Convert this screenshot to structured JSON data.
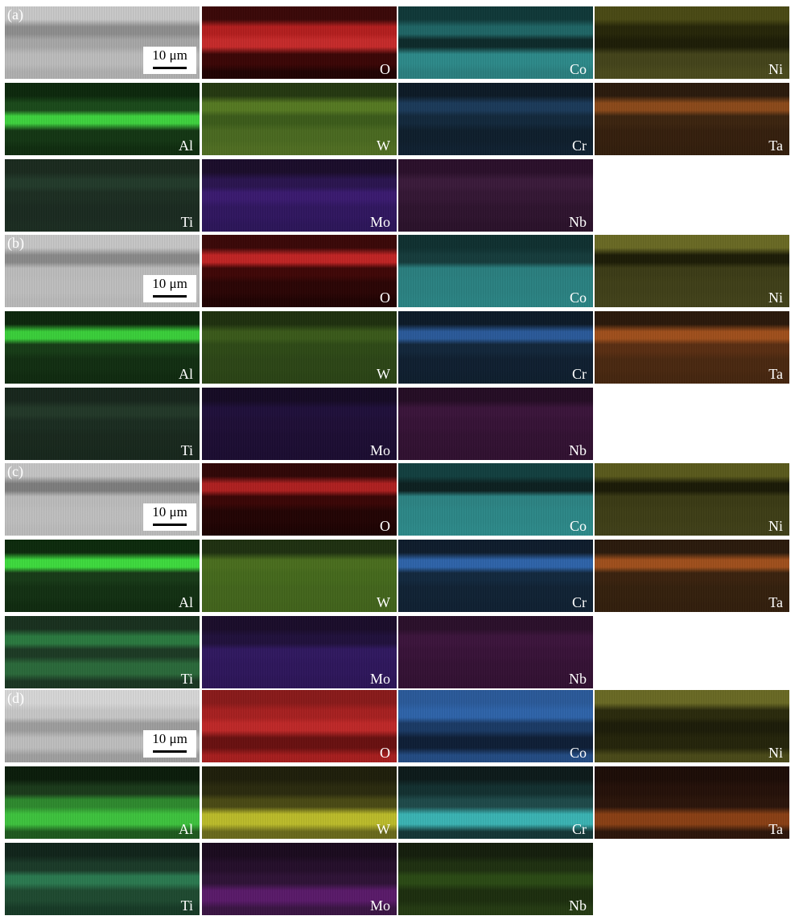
{
  "scale_bar": "10 μm",
  "panels": [
    {
      "label": "(a)",
      "tiles": [
        {
          "name": "sem",
          "label": "",
          "colors": [
            "#c9c9c9",
            "#8e8e8e",
            "#a8a8a8",
            "#bdbdbd",
            "#b0b0b0"
          ]
        },
        {
          "name": "O",
          "label": "O",
          "colors": [
            "#3a0707",
            "#b51e1e",
            "#c72a2a",
            "#3b0505",
            "#200202"
          ]
        },
        {
          "name": "Co",
          "label": "Co",
          "colors": [
            "#0f3838",
            "#1f6666",
            "#0d2a2a",
            "#2d8a8a",
            "#2a8080"
          ]
        },
        {
          "name": "Ni",
          "label": "Ni",
          "colors": [
            "#4a4a14",
            "#262608",
            "#1d1d06",
            "#44441a",
            "#4a4a1c"
          ]
        },
        {
          "name": "Al",
          "label": "Al",
          "colors": [
            "#0c280c",
            "#1a4a1a",
            "#3ed43e",
            "#133613",
            "#0f2d0f"
          ]
        },
        {
          "name": "W",
          "label": "W",
          "colors": [
            "#243810",
            "#567a22",
            "#3c5c1a",
            "#4a6a20",
            "#506e22"
          ]
        },
        {
          "name": "Cr",
          "label": "Cr",
          "colors": [
            "#0c1a26",
            "#1b3a5a",
            "#12283c",
            "#0e1e2c",
            "#0f2030"
          ]
        },
        {
          "name": "Ta",
          "label": "Ta",
          "colors": [
            "#2a1a0c",
            "#8c4a1a",
            "#3c240f",
            "#351f0d",
            "#331e0c"
          ]
        },
        {
          "name": "Ti",
          "label": "Ti",
          "colors": [
            "#1a2a1e",
            "#223a2a",
            "#1c2e22",
            "#1a2a20",
            "#1b2c21"
          ]
        },
        {
          "name": "Mo",
          "label": "Mo",
          "colors": [
            "#1a0c2a",
            "#2a1450",
            "#3a1a70",
            "#301660",
            "#2c155a"
          ]
        },
        {
          "name": "Nb",
          "label": "Nb",
          "colors": [
            "#2a0f2a",
            "#3a1a3a",
            "#341634",
            "#2e132e",
            "#2a112a"
          ]
        }
      ]
    },
    {
      "label": "(b)",
      "tiles": [
        {
          "name": "sem",
          "label": "",
          "colors": [
            "#c7c7c7",
            "#8a8a8a",
            "#bdbdbd",
            "#bfbfbf",
            "#bababa"
          ]
        },
        {
          "name": "O",
          "label": "O",
          "colors": [
            "#3a0707",
            "#c22424",
            "#400606",
            "#2a0404",
            "#200202"
          ]
        },
        {
          "name": "Co",
          "label": "Co",
          "colors": [
            "#0f3030",
            "#153c3c",
            "#2a8080",
            "#2a8282",
            "#2b8484"
          ]
        },
        {
          "name": "Ni",
          "label": "Ni",
          "colors": [
            "#6a6a24",
            "#1c1c06",
            "#3c3c16",
            "#404018",
            "#42421a"
          ]
        },
        {
          "name": "Al",
          "label": "Al",
          "colors": [
            "#0c260c",
            "#3ad03a",
            "#163c16",
            "#112e11",
            "#0f2a0f"
          ]
        },
        {
          "name": "W",
          "label": "W",
          "colors": [
            "#1e300e",
            "#3a5a1a",
            "#2e4a16",
            "#2c4616",
            "#2a4415"
          ]
        },
        {
          "name": "Cr",
          "label": "Cr",
          "colors": [
            "#0c1a28",
            "#2a5a9a",
            "#12263a",
            "#0f1f30",
            "#0e1e2e"
          ]
        },
        {
          "name": "Ta",
          "label": "Ta",
          "colors": [
            "#2a180a",
            "#a0501c",
            "#5a2e12",
            "#4a2810",
            "#46260f"
          ]
        },
        {
          "name": "Ti",
          "label": "Ti",
          "colors": [
            "#17261c",
            "#223828",
            "#1a2c20",
            "#18281d",
            "#17271c"
          ]
        },
        {
          "name": "Mo",
          "label": "Mo",
          "colors": [
            "#150a24",
            "#1f0f3a",
            "#1e0e36",
            "#1c0d33",
            "#1b0c31"
          ]
        },
        {
          "name": "Nb",
          "label": "Nb",
          "colors": [
            "#240c24",
            "#3a143a",
            "#361236",
            "#321132",
            "#301030"
          ]
        }
      ]
    },
    {
      "label": "(c)",
      "tiles": [
        {
          "name": "sem",
          "label": "",
          "colors": [
            "#c5c5c5",
            "#7e7e7e",
            "#bcbcbc",
            "#c0c0c0",
            "#bcbcbc"
          ]
        },
        {
          "name": "O",
          "label": "O",
          "colors": [
            "#300606",
            "#b02020",
            "#3a0505",
            "#220303",
            "#1d0202"
          ]
        },
        {
          "name": "Co",
          "label": "Co",
          "colors": [
            "#124040",
            "#0c2020",
            "#2c8484",
            "#2c8888",
            "#2d8a8a"
          ]
        },
        {
          "name": "Ni",
          "label": "Ni",
          "colors": [
            "#5a5a1c",
            "#1a1a06",
            "#3a3a14",
            "#3e3e16",
            "#404018"
          ]
        },
        {
          "name": "Al",
          "label": "Al",
          "colors": [
            "#0c2a0c",
            "#3edc3e",
            "#173a17",
            "#123012",
            "#0f2b0f"
          ]
        },
        {
          "name": "W",
          "label": "W",
          "colors": [
            "#1e3010",
            "#4a6e1e",
            "#456a1c",
            "#43661c",
            "#42641b"
          ]
        },
        {
          "name": "Cr",
          "label": "Cr",
          "colors": [
            "#0e1c2c",
            "#2e64aa",
            "#12283e",
            "#102234",
            "#0f2032"
          ]
        },
        {
          "name": "Ta",
          "label": "Ta",
          "colors": [
            "#2a1a0c",
            "#a0501c",
            "#3a220e",
            "#34200d",
            "#321e0c"
          ]
        },
        {
          "name": "Ti",
          "label": "Ti",
          "colors": [
            "#18301e",
            "#2a7a40",
            "#1c3a24",
            "#2a6a3a",
            "#1a3622"
          ]
        },
        {
          "name": "Mo",
          "label": "Mo",
          "colors": [
            "#1a0c2a",
            "#20103c",
            "#301860",
            "#2e165c",
            "#2c1558"
          ]
        },
        {
          "name": "Nb",
          "label": "Nb",
          "colors": [
            "#2a0f2a",
            "#3c143c",
            "#381238",
            "#341134",
            "#321032"
          ]
        }
      ]
    },
    {
      "label": "(d)",
      "tiles": [
        {
          "name": "sem",
          "label": "",
          "colors": [
            "#d8d8d8",
            "#c8c8c8",
            "#9e9e9e",
            "#bfbfbf",
            "#a0a0a0"
          ]
        },
        {
          "name": "O",
          "label": "O",
          "colors": [
            "#8a1a1a",
            "#a82020",
            "#c02828",
            "#6a1010",
            "#a81e1e"
          ]
        },
        {
          "name": "Co",
          "label": "Co",
          "colors": [
            "#2a5a9a",
            "#2e64aa",
            "#1a3a66",
            "#0e1e36",
            "#234c84"
          ]
        },
        {
          "name": "Ni",
          "label": "Ni",
          "colors": [
            "#6a6a24",
            "#2a2a0c",
            "#1c1c08",
            "#24240a",
            "#4a4a18"
          ]
        },
        {
          "name": "Al",
          "label": "Al",
          "colors": [
            "#0a1c0a",
            "#1a3a1a",
            "#2e8a2e",
            "#3ec43e",
            "#1e5a1e"
          ]
        },
        {
          "name": "W",
          "label": "W",
          "colors": [
            "#1e1e0a",
            "#2a2a0e",
            "#4a4a14",
            "#bcbc2a",
            "#6a6a1c"
          ]
        },
        {
          "name": "Cr",
          "label": "Cr",
          "colors": [
            "#0c1a1a",
            "#123030",
            "#1e4a4a",
            "#3ab4b4",
            "#143636"
          ]
        },
        {
          "name": "Ta",
          "label": "Ta",
          "colors": [
            "#1c0c06",
            "#241008",
            "#2a140a",
            "#8a4014",
            "#2c150a"
          ]
        },
        {
          "name": "Ti",
          "label": "Ti",
          "colors": [
            "#10241a",
            "#1a3a28",
            "#2a7a50",
            "#1e4a30",
            "#163a26"
          ]
        },
        {
          "name": "Mo",
          "label": "Mo",
          "colors": [
            "#1a0a1e",
            "#240e2a",
            "#2e1236",
            "#5a1a6a",
            "#3a1444"
          ]
        },
        {
          "name": "Nb",
          "label": "Nb",
          "colors": [
            "#141e0c",
            "#1e3010",
            "#2a4a14",
            "#1c2e0e",
            "#243a12"
          ]
        }
      ]
    }
  ]
}
